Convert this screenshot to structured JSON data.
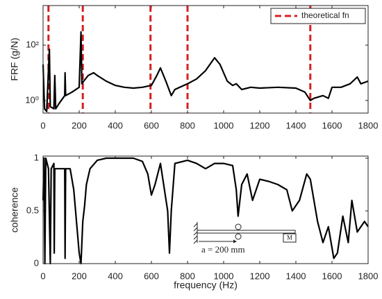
{
  "chart_data": [
    {
      "type": "line",
      "ylabel": "FRF (g/N)",
      "log_y": true,
      "color": "#000000",
      "xlim": [
        0,
        1800
      ],
      "xticks": [
        0,
        200,
        400,
        600,
        800,
        1000,
        1200,
        1400,
        1600,
        1800
      ],
      "ylim": [
        0.35,
        2700
      ],
      "yticks": [
        {
          "value": 1,
          "label": "10⁰"
        },
        {
          "value": 100,
          "label": "10²"
        }
      ],
      "x": [
        0,
        8,
        20,
        35,
        40,
        60,
        65,
        70,
        90,
        120,
        122,
        125,
        160,
        200,
        210,
        215,
        225,
        250,
        280,
        300,
        350,
        400,
        450,
        500,
        550,
        600,
        630,
        650,
        680,
        710,
        730,
        800,
        850,
        900,
        950,
        980,
        1020,
        1050,
        1070,
        1100,
        1150,
        1200,
        1300,
        1400,
        1450,
        1480,
        1500,
        1550,
        1580,
        1600,
        1650,
        1700,
        1740,
        1760,
        1800
      ],
      "values": [
        20,
        0.5,
        0.4,
        70,
        0.6,
        0.5,
        8,
        0.5,
        0.8,
        1.5,
        10,
        1.5,
        2,
        3,
        300,
        4,
        5,
        8,
        10,
        8,
        5,
        3.5,
        3,
        2.8,
        3,
        3.5,
        8,
        15,
        5,
        1.5,
        2.5,
        4,
        6,
        12,
        35,
        20,
        5,
        3.5,
        4,
        2.5,
        3,
        2.8,
        3,
        2.8,
        2,
        1,
        1.2,
        1.5,
        1.2,
        3,
        3,
        4,
        7,
        4,
        5
      ],
      "vlines": {
        "name": "theoretical fn",
        "color": "#d42020",
        "values": [
          30,
          220,
          595,
          800,
          1480
        ]
      },
      "legend": "northeast"
    },
    {
      "type": "line",
      "ylabel": "coherence",
      "xlabel": "frequency (Hz)",
      "color": "#000000",
      "xlim": [
        0,
        1800
      ],
      "xticks": [
        0,
        200,
        400,
        600,
        800,
        1000,
        1200,
        1400,
        1600,
        1800
      ],
      "ylim": [
        0,
        1.02
      ],
      "yticks": [
        0,
        0.5,
        1
      ],
      "x": [
        0,
        5,
        10,
        15,
        30,
        40,
        45,
        60,
        62,
        65,
        120,
        122,
        125,
        150,
        170,
        200,
        210,
        220,
        230,
        240,
        260,
        300,
        350,
        500,
        550,
        580,
        600,
        620,
        650,
        690,
        700,
        710,
        730,
        800,
        850,
        900,
        950,
        1000,
        1050,
        1070,
        1080,
        1100,
        1130,
        1160,
        1200,
        1250,
        1300,
        1350,
        1380,
        1420,
        1460,
        1480,
        1520,
        1550,
        1580,
        1610,
        1630,
        1660,
        1690,
        1710,
        1740,
        1780,
        1800
      ],
      "values": [
        0.6,
        1,
        0,
        1,
        0.9,
        0,
        0.9,
        0.95,
        0.1,
        0.9,
        0.9,
        0.05,
        0.9,
        0.9,
        0.7,
        0.1,
        0,
        0.4,
        0.55,
        0.75,
        0.9,
        0.98,
        1,
        1,
        0.97,
        0.85,
        0.65,
        0.75,
        0.95,
        0.5,
        0.1,
        0.5,
        0.95,
        0.98,
        0.95,
        0.9,
        0.95,
        0.95,
        0.93,
        0.7,
        0.45,
        0.75,
        0.85,
        0.6,
        0.8,
        0.78,
        0.75,
        0.7,
        0.5,
        0.6,
        0.85,
        0.8,
        0.4,
        0.2,
        0.35,
        0.05,
        0.1,
        0.45,
        0.2,
        0.6,
        0.3,
        0.4,
        0.35
      ],
      "inset": {
        "distance": "a = 200 mm",
        "mass": "M"
      }
    }
  ]
}
